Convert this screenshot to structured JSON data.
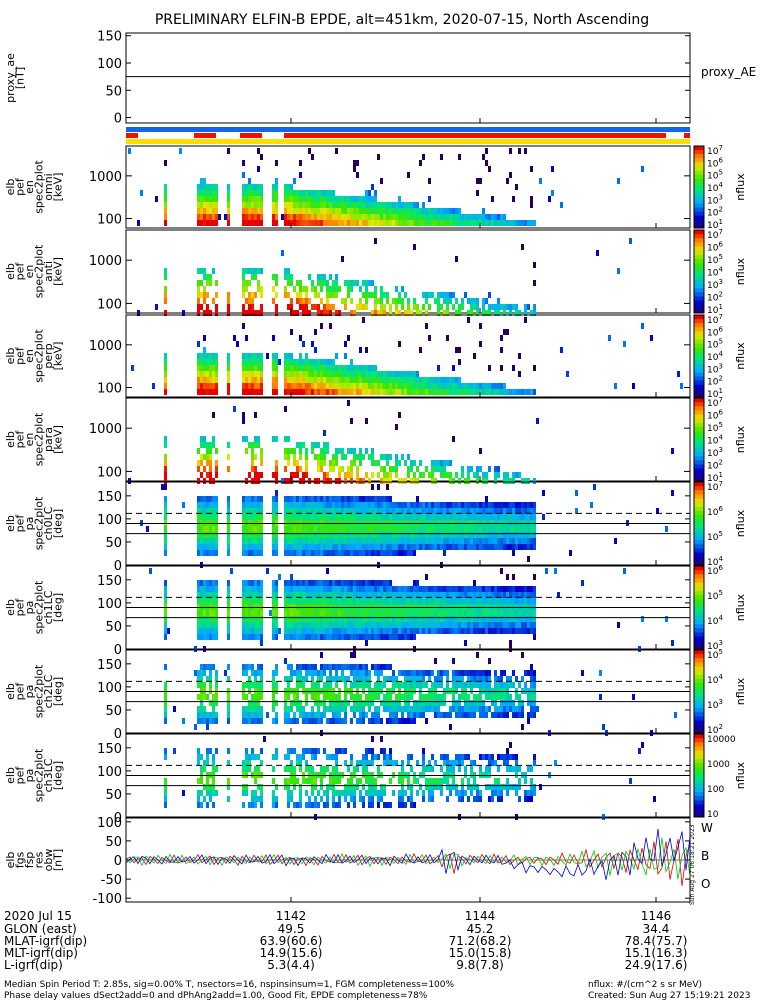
{
  "title": "PRELIMINARY ELFIN-B EPDE, alt=451km, 2020-07-15, North Ascending",
  "panels": [
    {
      "kind": "line",
      "ylabel": [
        "proxy_ae",
        "[nT]"
      ],
      "yticks": [
        "150",
        "100",
        "50",
        "0"
      ],
      "right_label": "proxy_AE",
      "value": 75
    },
    {
      "kind": "bars"
    },
    {
      "kind": "spec_en",
      "ylabel": [
        "elb",
        "pef",
        "en",
        "spec2plot",
        "omni",
        "[keV]"
      ],
      "yticks": [
        "1000",
        "100"
      ],
      "cb_ticks": [
        "10^7",
        "10^6",
        "10^5",
        "10^4",
        "10^3",
        "10^2",
        "10^1"
      ],
      "cb_label": "nflux"
    },
    {
      "kind": "spec_en",
      "ylabel": [
        "elb",
        "pef",
        "en",
        "spec2plot",
        "anti",
        "[keV]"
      ],
      "yticks": [
        "1000",
        "100"
      ],
      "cb_ticks": [
        "10^7",
        "10^6",
        "10^5",
        "10^4",
        "10^3",
        "10^2",
        "10^1"
      ],
      "cb_label": "nflux"
    },
    {
      "kind": "spec_en",
      "ylabel": [
        "elb",
        "pef",
        "en",
        "spec2plot",
        "perp",
        "[keV]"
      ],
      "yticks": [
        "1000",
        "100"
      ],
      "cb_ticks": [
        "10^7",
        "10^6",
        "10^5",
        "10^4",
        "10^3",
        "10^2",
        "10^1"
      ],
      "cb_label": "nflux"
    },
    {
      "kind": "spec_en",
      "ylabel": [
        "elb",
        "pef",
        "en",
        "spec2plot",
        "para",
        "[keV]"
      ],
      "yticks": [
        "1000",
        "100"
      ],
      "cb_ticks": [
        "10^7",
        "10^6",
        "10^5",
        "10^4",
        "10^3",
        "10^2",
        "10^1"
      ],
      "cb_label": "nflux"
    },
    {
      "kind": "spec_pa",
      "ylabel": [
        "elb",
        "pef",
        "pa",
        "spec2plot",
        "ch0LC",
        "[deg]"
      ],
      "yticks": [
        "150",
        "100",
        "50",
        "0"
      ],
      "cb_ticks": [
        "10^7",
        "10^6",
        "10^5",
        "10^4"
      ],
      "cb_label": "nflux"
    },
    {
      "kind": "spec_pa",
      "ylabel": [
        "elb",
        "pef",
        "pa",
        "spec2plot",
        "ch1LC",
        "[deg]"
      ],
      "yticks": [
        "150",
        "100",
        "50",
        "0"
      ],
      "cb_ticks": [
        "10^6",
        "10^5",
        "10^4",
        "10^3"
      ],
      "cb_label": "nflux"
    },
    {
      "kind": "spec_pa",
      "ylabel": [
        "elb",
        "pef",
        "pa",
        "spec2plot",
        "ch2LC",
        "[deg]"
      ],
      "yticks": [
        "150",
        "100",
        "50",
        "0"
      ],
      "cb_ticks": [
        "10^5",
        "10^4",
        "10^3",
        "10^2"
      ],
      "cb_label": "nflux"
    },
    {
      "kind": "spec_pa",
      "ylabel": [
        "elb",
        "pef",
        "pa",
        "spec2plot",
        "ch3LC",
        "[deg]"
      ],
      "yticks": [
        "150",
        "100",
        "50",
        "0"
      ],
      "cb_ticks": [
        "10000",
        "1000",
        "100",
        "10"
      ],
      "cb_label": "nflux"
    },
    {
      "kind": "fgs",
      "ylabel": [
        "elb",
        "fgs",
        "fsp",
        "res",
        "obw",
        "[nT]"
      ],
      "yticks": [
        "100",
        "50",
        "0",
        "-50",
        "-100"
      ],
      "legend": [
        "W",
        "B",
        "O"
      ]
    }
  ],
  "chart_data": [
    {
      "type": "line",
      "title": "PRELIMINARY ELFIN-B EPDE, alt=451km, 2020-07-15, North Ascending",
      "ylabel": "proxy_ae [nT]",
      "ylim": [
        -10,
        155
      ],
      "series": [
        {
          "name": "proxy_AE",
          "values": [
            75,
            75,
            75
          ]
        }
      ]
    },
    {
      "type": "heatmap",
      "ylabel": "elb pef en spec2plot omni [keV]",
      "ylim": [
        60,
        5000
      ],
      "yscale": "log",
      "colorbar": "nflux",
      "zlim": [
        10,
        10000000
      ]
    },
    {
      "type": "heatmap",
      "ylabel": "elb pef en spec2plot anti [keV]",
      "ylim": [
        60,
        5000
      ],
      "yscale": "log",
      "colorbar": "nflux",
      "zlim": [
        10,
        10000000
      ]
    },
    {
      "type": "heatmap",
      "ylabel": "elb pef en spec2plot perp [keV]",
      "ylim": [
        60,
        5000
      ],
      "yscale": "log",
      "colorbar": "nflux",
      "zlim": [
        10,
        10000000
      ]
    },
    {
      "type": "heatmap",
      "ylabel": "elb pef en spec2plot para [keV]",
      "ylim": [
        60,
        5000
      ],
      "yscale": "log",
      "colorbar": "nflux",
      "zlim": [
        10,
        10000000
      ]
    },
    {
      "type": "heatmap",
      "ylabel": "elb pef pa spec2plot ch0LC [deg]",
      "ylim": [
        0,
        180
      ],
      "colorbar": "nflux",
      "zlim": [
        3000,
        10000000
      ],
      "reference_lines": [
        {
          "deg": 112,
          "style": "dashed"
        },
        {
          "deg": 90,
          "style": "solid"
        },
        {
          "deg": 68,
          "style": "solid"
        }
      ]
    },
    {
      "type": "heatmap",
      "ylabel": "elb pef pa spec2plot ch1LC [deg]",
      "ylim": [
        0,
        180
      ],
      "colorbar": "nflux",
      "zlim": [
        300,
        3000000
      ],
      "reference_lines": [
        {
          "deg": 112,
          "style": "dashed"
        },
        {
          "deg": 90,
          "style": "solid"
        },
        {
          "deg": 68,
          "style": "solid"
        }
      ]
    },
    {
      "type": "heatmap",
      "ylabel": "elb pef pa spec2plot ch2LC [deg]",
      "ylim": [
        0,
        180
      ],
      "colorbar": "nflux",
      "zlim": [
        30,
        300000
      ],
      "reference_lines": [
        {
          "deg": 112,
          "style": "dashed"
        },
        {
          "deg": 90,
          "style": "solid"
        },
        {
          "deg": 68,
          "style": "solid"
        }
      ]
    },
    {
      "type": "heatmap",
      "ylabel": "elb pef pa spec2plot ch3LC [deg]",
      "ylim": [
        0,
        180
      ],
      "colorbar": "nflux",
      "zlim": [
        10,
        10000
      ],
      "reference_lines": [
        {
          "deg": 112,
          "style": "dashed"
        },
        {
          "deg": 90,
          "style": "solid"
        },
        {
          "deg": 68,
          "style": "solid"
        }
      ]
    },
    {
      "type": "line",
      "ylabel": "elb fgs fsp res obw [nT]",
      "ylim": [
        -110,
        110
      ],
      "series": [
        {
          "name": "W",
          "color": "#dd0000"
        },
        {
          "name": "B",
          "color": "#00cc00"
        },
        {
          "name": "O",
          "color": "#0000dd"
        }
      ]
    }
  ],
  "xaxis": {
    "row_labels": [
      "2020 Jul 15",
      "GLON (east)",
      "MLAT-igrf(dip)",
      "MLT-igrf(dip)",
      "L-igrf(dip)"
    ],
    "columns": [
      {
        "values": [
          "1142",
          "49.5",
          "63.9(60.6)",
          "14.9(15.6)",
          "5.3(4.4)"
        ]
      },
      {
        "values": [
          "1144",
          "45.2",
          "71.2(68.2)",
          "15.0(15.8)",
          "9.8(7.8)"
        ]
      },
      {
        "values": [
          "1146",
          "34.4",
          "78.4(75.7)",
          "15.1(16.3)",
          "24.9(17.6)"
        ]
      }
    ]
  },
  "footer": {
    "line1": "Median Spin Period T: 2.85s, sig=0.00% T, nsectors=16, nspinsinsum=1, FGM completeness=100%",
    "line2": "Phase delay values dSect2add=0 and dPhAng2add=1.00, Good Fit, EPDE completeness=78%",
    "right1": "nflux: #/(cm^2 s sr MeV)",
    "right2": "Created: Sun Aug 27 15:19:21 2023",
    "vertical_stamp": "Sun Aug 27 06:18:21 2023"
  },
  "colors": {
    "red": "#ee1100",
    "blue": "#1166ee",
    "yellow": "#ffdd00"
  }
}
